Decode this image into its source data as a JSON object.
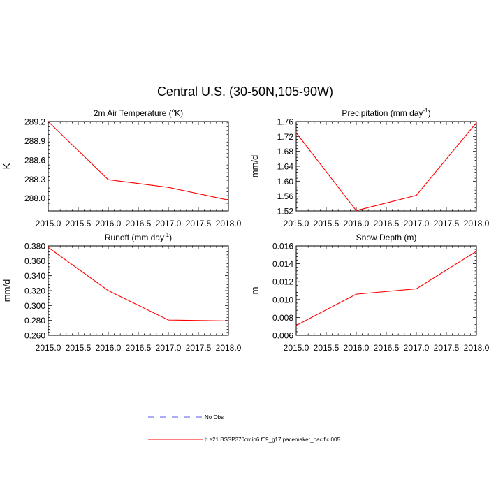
{
  "figure": {
    "title": "Central U.S. (30-50N,105-90W)"
  },
  "legend": {
    "entries": [
      {
        "label": "No Obs",
        "color": "#5555ee",
        "style": "dashed"
      },
      {
        "label": "b.e21.BSSP370cmip6.f09_g17.pacemaker_pacific.005",
        "color": "#ff0000",
        "style": "solid"
      }
    ]
  },
  "chart_data": [
    {
      "type": "line",
      "title": "2m Air Temperature (",
      "title_sup": "o",
      "title_tail": "K)",
      "ylabel": "K",
      "xlabel": "",
      "xlim": [
        2015.0,
        2018.0
      ],
      "xticks": [
        "2015.0",
        "2015.5",
        "2016.0",
        "2016.5",
        "2017.0",
        "2017.5",
        "2018.0"
      ],
      "ylim": [
        287.8,
        289.2
      ],
      "yticks": [
        "288.0",
        "288.3",
        "288.6",
        "288.9",
        "289.2"
      ],
      "series": [
        {
          "color": "#ff0000",
          "x": [
            2015,
            2016,
            2017,
            2018
          ],
          "y": [
            289.2,
            288.29,
            288.17,
            287.97
          ]
        }
      ]
    },
    {
      "type": "line",
      "title": "Precipitation (mm day",
      "title_sup": "-1",
      "title_tail": ")",
      "ylabel": "mm/d",
      "xlabel": "",
      "xlim": [
        2015.0,
        2018.0
      ],
      "xticks": [
        "2015.0",
        "2015.5",
        "2016.0",
        "2016.5",
        "2017.0",
        "2017.5",
        "2018.0"
      ],
      "ylim": [
        1.52,
        1.76
      ],
      "yticks": [
        "1.52",
        "1.56",
        "1.60",
        "1.64",
        "1.68",
        "1.72",
        "1.76"
      ],
      "series": [
        {
          "color": "#ff0000",
          "x": [
            2015,
            2016,
            2017,
            2018
          ],
          "y": [
            1.73,
            1.521,
            1.562,
            1.757
          ]
        }
      ]
    },
    {
      "type": "line",
      "title": "Runoff (mm day",
      "title_sup": "-1",
      "title_tail": ")",
      "ylabel": "mm/d",
      "xlabel": "",
      "xlim": [
        2015.0,
        2018.0
      ],
      "xticks": [
        "2015.0",
        "2015.5",
        "2016.0",
        "2016.5",
        "2017.0",
        "2017.5",
        "2018.0"
      ],
      "ylim": [
        0.26,
        0.38
      ],
      "yticks": [
        "0.260",
        "0.280",
        "0.300",
        "0.320",
        "0.340",
        "0.360",
        "0.380"
      ],
      "series": [
        {
          "color": "#ff0000",
          "x": [
            2015,
            2016,
            2017,
            2018
          ],
          "y": [
            0.378,
            0.32,
            0.2805,
            0.2793
          ]
        }
      ]
    },
    {
      "type": "line",
      "title": "Snow Depth (m)",
      "title_sup": "",
      "title_tail": "",
      "ylabel": "m",
      "xlabel": "",
      "xlim": [
        2015.0,
        2018.0
      ],
      "xticks": [
        "2015.0",
        "2015.5",
        "2016.0",
        "2016.5",
        "2017.0",
        "2017.5",
        "2018.0"
      ],
      "ylim": [
        0.006,
        0.016
      ],
      "yticks": [
        "0.006",
        "0.008",
        "0.010",
        "0.012",
        "0.014",
        "0.016"
      ],
      "series": [
        {
          "color": "#ff0000",
          "x": [
            2015,
            2016,
            2017,
            2018
          ],
          "y": [
            0.0071,
            0.0106,
            0.0112,
            0.0154
          ]
        }
      ]
    }
  ]
}
